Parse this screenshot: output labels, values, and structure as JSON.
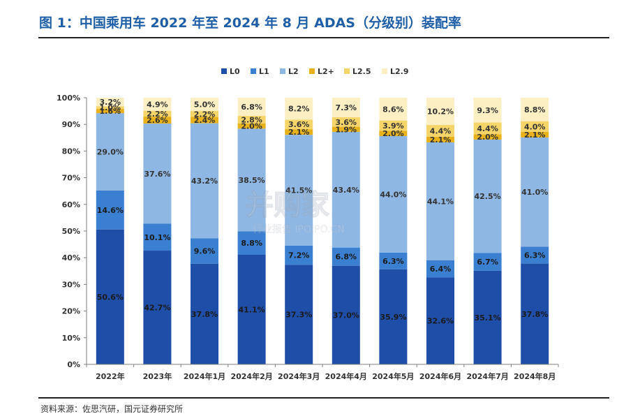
{
  "figure": {
    "title": "图 1：中国乘用车 2022 年至 2024 年 8 月 ADAS（分级别）装配率",
    "source": "资料来源：佐思汽研，国元证券研究所"
  },
  "chart_data": {
    "type": "bar",
    "stacked": true,
    "percent_stacked": true,
    "categories": [
      "2022年",
      "2023年",
      "2024年1月",
      "2024年2月",
      "2024年3月",
      "2024年4月",
      "2024年5月",
      "2024年6月",
      "2024年7月",
      "2024年8月"
    ],
    "series": [
      {
        "name": "L0",
        "color": "#1f4ea8",
        "label_color": "#1a1a1a",
        "values": [
          50.6,
          42.7,
          37.8,
          41.1,
          37.3,
          37.0,
          35.9,
          32.6,
          35.1,
          37.8
        ],
        "labels": [
          "50.6%",
          "42.7%",
          "37.8%",
          "41.1%",
          "37.3%",
          "37.0%",
          "35.9%",
          "32.6%",
          "35.1%",
          "37.8%"
        ]
      },
      {
        "name": "L1",
        "color": "#3b7fd0",
        "label_color": "#1a1a1a",
        "values": [
          14.6,
          10.1,
          9.6,
          8.8,
          7.2,
          6.8,
          6.3,
          6.4,
          6.7,
          6.3
        ],
        "labels": [
          "14.6%",
          "10.1%",
          "9.6%",
          "8.8%",
          "7.2%",
          "6.8%",
          "6.3%",
          "6.4%",
          "6.7%",
          "6.3%"
        ]
      },
      {
        "name": "L2",
        "color": "#8fb7e3",
        "label_color": "#333333",
        "values": [
          29.0,
          37.6,
          43.2,
          38.5,
          41.5,
          43.4,
          44.0,
          44.1,
          42.5,
          41.0
        ],
        "labels": [
          "29.0%",
          "37.6%",
          "43.2%",
          "38.5%",
          "41.5%",
          "43.4%",
          "44.0%",
          "44.1%",
          "42.5%",
          "41.0%"
        ]
      },
      {
        "name": "L2+",
        "color": "#e8b21c",
        "label_color": "#333333",
        "values": [
          1.6,
          2.6,
          2.4,
          2.0,
          2.1,
          1.9,
          2.0,
          2.1,
          2.0,
          2.1
        ],
        "labels": [
          "1.6%",
          "2.6%",
          "2.4%",
          "2.0%",
          "2.1%",
          "1.9%",
          "2.0%",
          "2.1%",
          "2.0%",
          "2.1%"
        ]
      },
      {
        "name": "L2.5",
        "color": "#f5d56a",
        "label_color": "#333333",
        "values": [
          1.0,
          2.2,
          2.2,
          2.8,
          3.6,
          3.6,
          3.9,
          4.4,
          4.4,
          4.0
        ],
        "labels": [
          "1.0%",
          "2.2%",
          "2.2%",
          "2.8%",
          "3.6%",
          "3.6%",
          "3.9%",
          "4.4%",
          "4.4%",
          "4.0%"
        ]
      },
      {
        "name": "L2.9",
        "color": "#fcefc4",
        "label_color": "#333333",
        "values": [
          3.2,
          4.9,
          5.0,
          6.8,
          8.2,
          7.3,
          8.6,
          10.2,
          9.3,
          8.8
        ],
        "labels": [
          "3.2%",
          "4.9%",
          "5.0%",
          "6.8%",
          "8.2%",
          "7.3%",
          "8.6%",
          "10.2%",
          "9.3%",
          "8.8%"
        ]
      }
    ],
    "yticks": [
      "0%",
      "10%",
      "20%",
      "30%",
      "40%",
      "50%",
      "60%",
      "70%",
      "80%",
      "90%",
      "100%"
    ],
    "ylim": [
      0,
      100
    ],
    "legend_position": "top-center",
    "grid": false
  },
  "watermark": {
    "text": "并购家",
    "subtext": "行业报告 IPOIPO.CN"
  }
}
